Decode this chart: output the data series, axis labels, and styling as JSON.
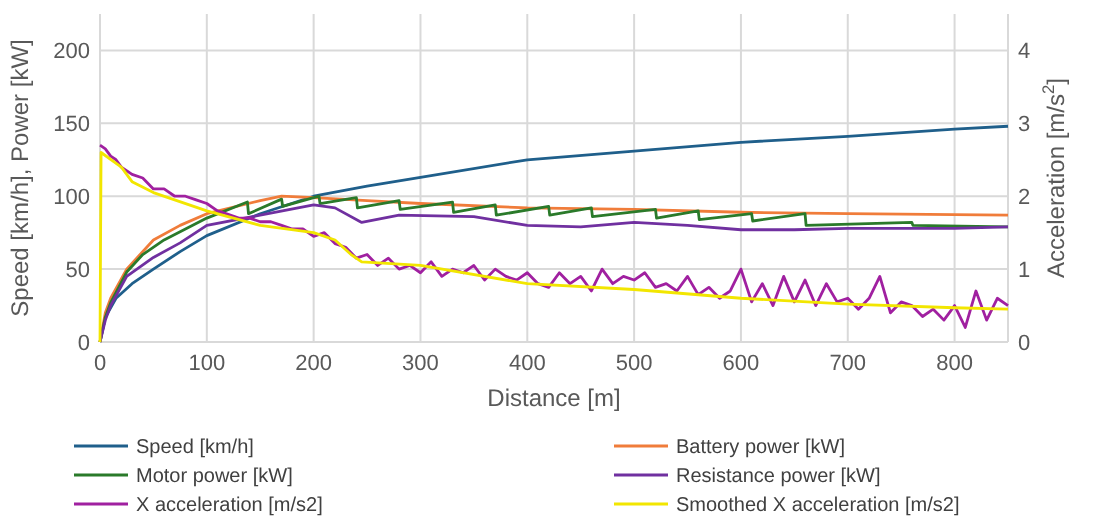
{
  "chart_data": {
    "type": "line",
    "xlabel": "Distance [m]",
    "ylabel": "Speed [km/h], Power [kW]",
    "y2label": "Acceleration [m/s$^{2}$]",
    "xlim": [
      0,
      850
    ],
    "xticks": [
      0,
      100,
      200,
      300,
      400,
      500,
      600,
      700,
      800
    ],
    "ylim": [
      0,
      225
    ],
    "yticks": [
      0,
      50,
      100,
      150,
      200
    ],
    "y2lim": [
      0,
      4.5
    ],
    "y2ticks": [
      0,
      1,
      2,
      3,
      4
    ],
    "grid": true,
    "legend": "bottom",
    "marker": "none",
    "line_style": "solid",
    "series": [
      {
        "name": "Speed [km/h]",
        "color": "#1f5f8b",
        "x": [
          0,
          5,
          15,
          30,
          50,
          75,
          100,
          150,
          200,
          250,
          300,
          400,
          500,
          600,
          700,
          800,
          850
        ],
        "values": [
          0,
          17,
          30,
          40,
          50,
          62,
          73,
          88,
          100,
          107,
          113,
          125,
          131,
          137,
          141,
          146,
          148
        ]
      },
      {
        "name": "Battery power [kW]",
        "color": "#f07c3a",
        "x": [
          0,
          5,
          10,
          25,
          50,
          75,
          100,
          150,
          170,
          200,
          250,
          300,
          400,
          500,
          600,
          700,
          850
        ],
        "values": [
          0,
          20,
          30,
          50,
          70,
          80,
          88,
          97,
          100,
          99,
          97,
          95,
          92,
          91,
          89,
          88,
          87
        ]
      },
      {
        "name": "Motor power [kW]",
        "color": "#2a7a2a",
        "x": [
          0,
          5,
          10,
          25,
          40,
          60,
          100,
          138,
          139,
          170,
          171,
          205,
          206,
          240,
          241,
          280,
          281,
          330,
          331,
          370,
          371,
          420,
          421,
          460,
          461,
          520,
          521,
          560,
          561,
          610,
          611,
          660,
          661,
          760,
          761,
          850
        ],
        "values": [
          0,
          17,
          27,
          48,
          60,
          70,
          85,
          96,
          88,
          98,
          93,
          100,
          95,
          99,
          92,
          97,
          91,
          96,
          89,
          94,
          87,
          93,
          87,
          92,
          86,
          91,
          85,
          90,
          84,
          88,
          83,
          88,
          80,
          82,
          80,
          79
        ]
      },
      {
        "name": "Resistance power [kW]",
        "color": "#7030a0",
        "x": [
          0,
          5,
          10,
          25,
          50,
          75,
          100,
          150,
          200,
          220,
          245,
          280,
          350,
          400,
          450,
          500,
          550,
          600,
          650,
          700,
          800,
          850
        ],
        "values": [
          0,
          15,
          25,
          45,
          58,
          68,
          80,
          87,
          94,
          92,
          82,
          87,
          86,
          80,
          79,
          82,
          80,
          77,
          77,
          78,
          78,
          79
        ]
      },
      {
        "name": "X acceleration [m/s2]",
        "color": "#a020a0",
        "axis": "y2",
        "x": [
          0,
          5,
          10,
          15,
          20,
          30,
          40,
          50,
          60,
          70,
          80,
          90,
          100,
          110,
          120,
          130,
          140,
          150,
          160,
          170,
          180,
          190,
          200,
          210,
          220,
          230,
          240,
          250,
          260,
          270,
          280,
          290,
          300,
          310,
          320,
          330,
          340,
          350,
          360,
          370,
          380,
          390,
          400,
          410,
          420,
          430,
          440,
          450,
          460,
          470,
          480,
          490,
          500,
          510,
          520,
          530,
          540,
          550,
          560,
          570,
          580,
          590,
          600,
          610,
          620,
          630,
          640,
          650,
          660,
          670,
          680,
          690,
          700,
          710,
          720,
          730,
          740,
          750,
          760,
          770,
          780,
          790,
          800,
          810,
          820,
          830,
          840,
          850
        ],
        "values": [
          2.7,
          2.65,
          2.55,
          2.5,
          2.4,
          2.3,
          2.25,
          2.1,
          2.1,
          2.0,
          2.0,
          1.95,
          1.9,
          1.8,
          1.75,
          1.7,
          1.7,
          1.65,
          1.65,
          1.6,
          1.55,
          1.55,
          1.45,
          1.5,
          1.35,
          1.3,
          1.15,
          1.2,
          1.05,
          1.15,
          1.0,
          1.05,
          0.95,
          1.1,
          0.9,
          1.0,
          0.95,
          1.05,
          0.85,
          1.0,
          0.9,
          0.85,
          0.95,
          0.8,
          0.75,
          0.95,
          0.8,
          0.9,
          0.7,
          1.0,
          0.8,
          0.9,
          0.85,
          0.95,
          0.75,
          0.8,
          0.7,
          0.9,
          0.65,
          0.75,
          0.6,
          0.7,
          1.0,
          0.55,
          0.8,
          0.5,
          0.9,
          0.55,
          0.85,
          0.5,
          0.8,
          0.55,
          0.6,
          0.45,
          0.6,
          0.9,
          0.4,
          0.55,
          0.5,
          0.35,
          0.45,
          0.3,
          0.5,
          0.2,
          0.7,
          0.3,
          0.6,
          0.5
        ]
      },
      {
        "name": "Smoothed X acceleration [m/s2]",
        "color": "#f2e600",
        "axis": "y2",
        "x": [
          0,
          1,
          20,
          30,
          50,
          100,
          150,
          200,
          220,
          235,
          245,
          300,
          400,
          500,
          600,
          700,
          800,
          850
        ],
        "values": [
          0,
          2.6,
          2.4,
          2.2,
          2.05,
          1.8,
          1.6,
          1.5,
          1.4,
          1.2,
          1.1,
          1.05,
          0.8,
          0.72,
          0.6,
          0.52,
          0.47,
          0.45
        ]
      }
    ]
  }
}
